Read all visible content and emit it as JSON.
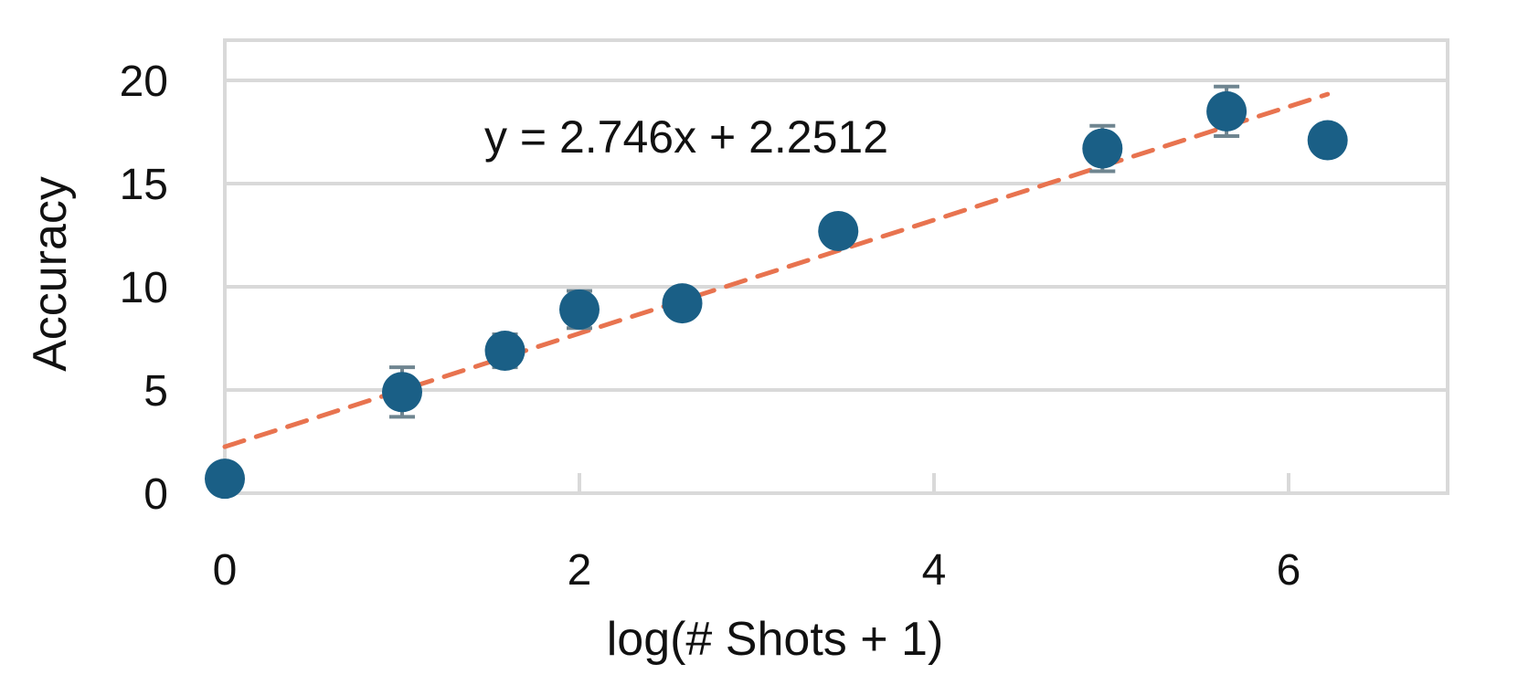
{
  "chart_data": {
    "type": "scatter",
    "title": "",
    "xlabel": "log(# Shots + 1)",
    "ylabel": "Accuracy",
    "xlim": [
      0,
      7
    ],
    "ylim": [
      0,
      20
    ],
    "x_ticks": [
      0,
      2,
      4,
      6
    ],
    "x_tick_labels": [
      "0",
      "2",
      "4",
      "6"
    ],
    "y_ticks": [
      0,
      5,
      10,
      15,
      20
    ],
    "y_tick_labels": [
      "0",
      "5",
      "10",
      "15",
      "20"
    ],
    "grid": "horizontal",
    "series": [
      {
        "x": [
          0,
          1,
          1.58,
          2,
          2.58,
          3.46,
          4.95,
          5.65,
          6.22
        ],
        "y": [
          0.7,
          4.9,
          6.9,
          8.9,
          9.2,
          12.7,
          16.7,
          18.5,
          17.1
        ],
        "error": [
          null,
          1.2,
          0.8,
          0.9,
          null,
          null,
          1.1,
          1.2,
          null
        ],
        "color": "#1a5f86"
      }
    ],
    "trendline": {
      "slope": 2.746,
      "intercept": 2.2512,
      "x_range": [
        0,
        6.22
      ],
      "label": "y = 2.746x + 2.2512",
      "color": "#e8734f",
      "style": "dashed"
    },
    "errorbar_color": "#6f8590",
    "grid_color": "#d9d9d9",
    "frame_color": "#d9d9d9"
  }
}
